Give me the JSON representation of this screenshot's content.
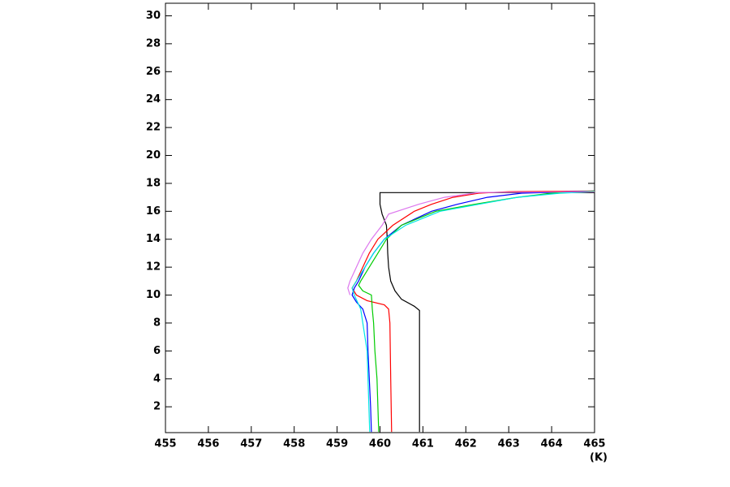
{
  "chart_data": {
    "type": "line",
    "orientation": "vertical",
    "xlabel": "(K)",
    "xlim": [
      455,
      465
    ],
    "xticks": [
      455,
      456,
      457,
      458,
      459,
      460,
      461,
      462,
      463,
      464,
      465
    ],
    "ylim": [
      0.15,
      30.9
    ],
    "yticks": [
      2,
      4,
      6,
      8,
      10,
      12,
      14,
      16,
      18,
      20,
      22,
      24,
      26,
      28,
      30
    ],
    "series": [
      {
        "color": "#000000",
        "y": [
          0.2,
          8.9,
          9.2,
          9.7,
          10.3,
          11,
          12,
          13,
          14,
          15,
          15.8,
          16.5,
          17.34,
          17.34
        ],
        "values": [
          460.92,
          460.92,
          460.8,
          460.5,
          460.35,
          460.25,
          460.2,
          460.18,
          460.17,
          460.15,
          460.05,
          460,
          460,
          465
        ]
      },
      {
        "color": "#ff0000",
        "y": [
          0.2,
          4,
          8,
          9,
          9.3,
          9.6,
          10,
          10.5,
          11,
          12,
          13,
          14,
          15,
          16,
          16.5,
          17,
          17.3,
          17.4,
          17.45
        ],
        "values": [
          460.27,
          460.25,
          460.23,
          460.2,
          460.1,
          459.7,
          459.45,
          459.35,
          459.45,
          459.6,
          459.75,
          459.95,
          460.3,
          460.8,
          461.2,
          461.7,
          462.3,
          463,
          465
        ]
      },
      {
        "color": "#0000ff",
        "y": [
          0.2,
          2,
          4,
          6,
          8,
          9,
          9.5,
          10,
          10.5,
          11,
          12,
          13,
          14,
          15,
          16,
          16.5,
          17,
          17.3,
          17.45
        ],
        "values": [
          459.8,
          459.78,
          459.75,
          459.72,
          459.7,
          459.6,
          459.45,
          459.35,
          459.4,
          459.5,
          459.65,
          459.85,
          460.1,
          460.5,
          461.2,
          461.8,
          462.5,
          463.3,
          465
        ]
      },
      {
        "color": "#00cc00",
        "y": [
          0.2,
          4,
          6,
          8,
          9,
          10,
          10.3,
          10.7,
          11,
          12,
          13,
          14,
          15,
          16,
          16.5,
          17,
          17.3,
          17.45
        ],
        "values": [
          459.97,
          459.93,
          459.88,
          459.85,
          459.82,
          459.8,
          459.6,
          459.5,
          459.55,
          459.75,
          459.95,
          460.15,
          460.5,
          461.3,
          462.2,
          463.2,
          464,
          465
        ]
      },
      {
        "color": "#00e5e5",
        "y": [
          0.2,
          4,
          6,
          8,
          9,
          10,
          10.5,
          11,
          12,
          13,
          14,
          15,
          16,
          16.5,
          17,
          17.3,
          17.4
        ],
        "values": [
          459.76,
          459.72,
          459.7,
          459.6,
          459.55,
          459.4,
          459.35,
          459.45,
          459.65,
          459.85,
          460.1,
          460.6,
          461.4,
          462.3,
          463.2,
          464.2,
          465
        ]
      },
      {
        "color": "#dd77ee",
        "y": [
          10,
          10.5,
          11,
          12,
          13,
          14,
          15,
          15.8,
          16.5,
          17,
          17.35,
          17.4
        ],
        "values": [
          459.3,
          459.25,
          459.3,
          459.45,
          459.6,
          459.8,
          460.05,
          460.2,
          460.9,
          461.5,
          462.3,
          465
        ]
      }
    ]
  }
}
